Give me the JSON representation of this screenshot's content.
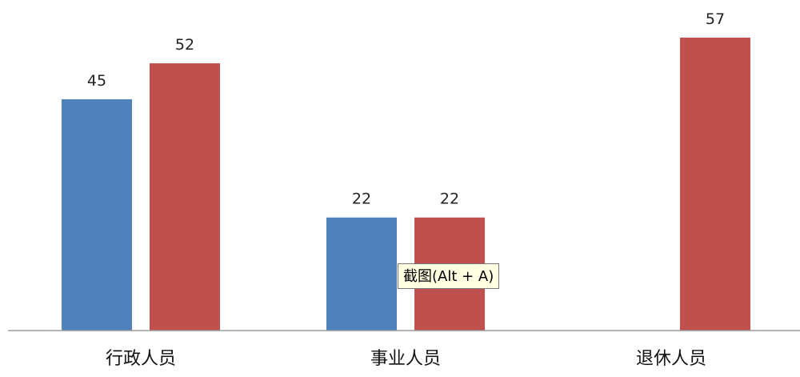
{
  "chart_data": {
    "type": "bar",
    "categories": [
      "行政人员",
      "事业人员",
      "退休人员"
    ],
    "series": [
      {
        "color": "#4f81bd",
        "values": [
          45,
          22,
          null
        ]
      },
      {
        "color": "#c0504d",
        "values": [
          52,
          22,
          57
        ]
      }
    ],
    "ylim": [
      0,
      60
    ],
    "grid": false,
    "legend": "none"
  },
  "tooltip": {
    "text": "截图(Alt + A)"
  }
}
